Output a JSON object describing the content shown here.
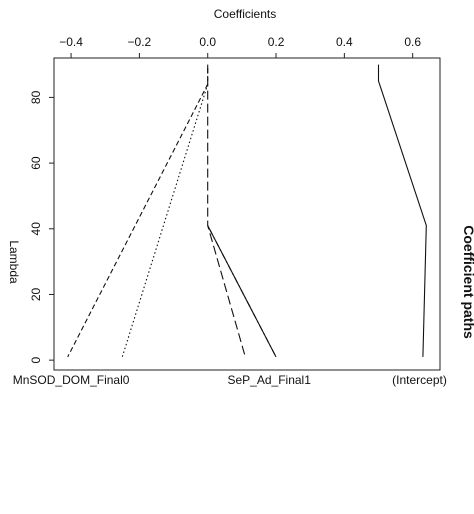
{
  "chart_data": {
    "type": "line",
    "title": "Coefficient paths",
    "xlabel": "Coefficients",
    "ylabel": "Lambda",
    "xlim": [
      -0.45,
      0.68
    ],
    "ylim": [
      -3,
      92
    ],
    "x_ticks": [
      -0.4,
      -0.2,
      0.0,
      0.2,
      0.4,
      0.6
    ],
    "x_tick_labels": [
      "−0.4",
      "−0.2",
      "0.0",
      "0.2",
      "0.4",
      "0.6"
    ],
    "y_ticks": [
      0,
      20,
      40,
      60,
      80
    ],
    "y_tick_labels": [
      "0",
      "20",
      "40",
      "60",
      "80"
    ],
    "grid": false,
    "bottom_labels": [
      {
        "text": "MnSOD_DOM_Final0",
        "x": -0.4
      },
      {
        "text": "SeP_Ad_Final1",
        "x": 0.18
      },
      {
        "text": "(Intercept)",
        "x": 0.62
      }
    ],
    "series": [
      {
        "style": "dashed",
        "points": [
          [
            0.0,
            89
          ],
          [
            0.0,
            84
          ],
          [
            -0.41,
            1
          ]
        ]
      },
      {
        "style": "dotted",
        "points": [
          [
            0.0,
            84
          ],
          [
            -0.25,
            1
          ]
        ]
      },
      {
        "style": "longdash",
        "points": [
          [
            0.0,
            90
          ],
          [
            0.0,
            41
          ],
          [
            0.11,
            1
          ]
        ]
      },
      {
        "style": "dotdash",
        "points": [
          [
            0.0,
            41
          ],
          [
            0.2,
            1
          ]
        ]
      },
      {
        "style": "solid",
        "points": [
          [
            0.0,
            41
          ],
          [
            0.2,
            1
          ]
        ]
      },
      {
        "style": "solid",
        "points": [
          [
            0.5,
            90
          ],
          [
            0.5,
            85
          ],
          [
            0.64,
            41
          ],
          [
            0.63,
            1
          ]
        ]
      }
    ]
  }
}
